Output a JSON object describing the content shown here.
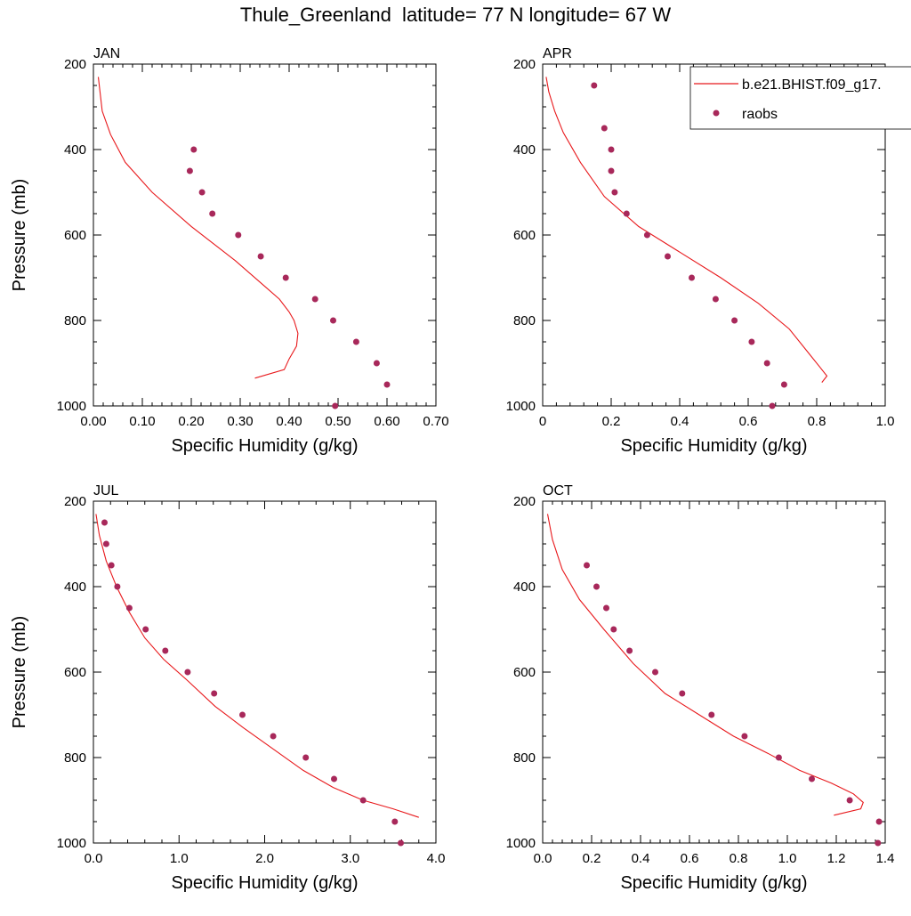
{
  "title": "Thule_Greenland  latitude= 77 N longitude= 67 W",
  "legend": {
    "model_label": "b.e21.BHIST.f09_g17.",
    "obs_label": "raobs",
    "model_color": "#e8191c",
    "obs_color": "#a8285a"
  },
  "chart_data": [
    {
      "type": "line",
      "panel": "JAN",
      "xlabel": "Specific Humidity (g/kg)",
      "ylabel": "Pressure (mb)",
      "xlim": [
        0,
        0.7
      ],
      "ylim": [
        1000,
        200
      ],
      "y_reversed": true,
      "xticks": [
        0,
        0.1,
        0.2,
        0.3,
        0.4,
        0.5,
        0.6,
        0.7
      ],
      "xtick_labels": [
        "0.00",
        "0.10",
        "0.20",
        "0.30",
        "0.40",
        "0.50",
        "0.60",
        "0.70"
      ],
      "yticks": [
        200,
        400,
        600,
        800,
        1000
      ],
      "ytick_labels": [
        "200",
        "400",
        "600",
        "800",
        "1000"
      ],
      "series": [
        {
          "name": "b.e21.BHIST.f09_g17.",
          "kind": "line",
          "x": [
            0.33,
            0.39,
            0.4,
            0.415,
            0.418,
            0.41,
            0.4,
            0.38,
            0.35,
            0.29,
            0.2,
            0.12,
            0.065,
            0.035,
            0.018,
            0.01
          ],
          "y": [
            935,
            915,
            890,
            860,
            830,
            800,
            780,
            750,
            720,
            660,
            580,
            500,
            430,
            365,
            310,
            230
          ]
        },
        {
          "name": "raobs",
          "kind": "scatter",
          "x": [
            0.205,
            0.197,
            0.222,
            0.243,
            0.296,
            0.342,
            0.393,
            0.453,
            0.49,
            0.537,
            0.579,
            0.6,
            0.494
          ],
          "y": [
            400,
            450,
            500,
            550,
            600,
            650,
            700,
            750,
            800,
            850,
            900,
            950,
            1000
          ]
        }
      ]
    },
    {
      "type": "line",
      "panel": "APR",
      "xlabel": "Specific Humidity (g/kg)",
      "ylabel": "",
      "xlim": [
        0,
        1.0
      ],
      "ylim": [
        1000,
        200
      ],
      "y_reversed": true,
      "xticks": [
        0,
        0.2,
        0.4,
        0.6,
        0.8,
        1.0
      ],
      "xtick_labels": [
        "0",
        "0.2",
        "0.4",
        "0.6",
        "0.8",
        "1.0"
      ],
      "yticks": [
        200,
        400,
        600,
        800,
        1000
      ],
      "ytick_labels": [
        "200",
        "400",
        "600",
        "800",
        "1000"
      ],
      "series": [
        {
          "name": "b.e21.BHIST.f09_g17.",
          "kind": "line",
          "x": [
            0.815,
            0.83,
            0.81,
            0.78,
            0.72,
            0.63,
            0.52,
            0.4,
            0.28,
            0.18,
            0.11,
            0.06,
            0.035,
            0.018,
            0.01
          ],
          "y": [
            945,
            930,
            910,
            880,
            820,
            760,
            700,
            640,
            580,
            510,
            430,
            360,
            310,
            265,
            230
          ]
        },
        {
          "name": "raobs",
          "kind": "scatter",
          "x": [
            0.15,
            0.18,
            0.2,
            0.2,
            0.21,
            0.245,
            0.305,
            0.365,
            0.435,
            0.505,
            0.56,
            0.61,
            0.655,
            0.705,
            0.67
          ],
          "y": [
            250,
            350,
            400,
            450,
            500,
            550,
            600,
            650,
            700,
            750,
            800,
            850,
            900,
            950,
            1000
          ]
        }
      ]
    },
    {
      "type": "line",
      "panel": "JUL",
      "xlabel": "Specific Humidity (g/kg)",
      "ylabel": "Pressure (mb)",
      "xlim": [
        0,
        4.0
      ],
      "ylim": [
        1000,
        200
      ],
      "y_reversed": true,
      "xticks": [
        0,
        1,
        2,
        3,
        4
      ],
      "xtick_labels": [
        "0.0",
        "1.0",
        "2.0",
        "3.0",
        "4.0"
      ],
      "yticks": [
        200,
        400,
        600,
        800,
        1000
      ],
      "ytick_labels": [
        "200",
        "400",
        "600",
        "800",
        "1000"
      ],
      "series": [
        {
          "name": "b.e21.BHIST.f09_g17.",
          "kind": "line",
          "x": [
            3.8,
            3.5,
            3.15,
            2.8,
            2.45,
            2.1,
            1.75,
            1.42,
            1.1,
            0.82,
            0.6,
            0.42,
            0.27,
            0.15,
            0.07,
            0.03
          ],
          "y": [
            940,
            920,
            900,
            870,
            830,
            780,
            730,
            680,
            620,
            570,
            520,
            460,
            400,
            340,
            280,
            230
          ]
        },
        {
          "name": "raobs",
          "kind": "scatter",
          "x": [
            0.13,
            0.15,
            0.21,
            0.28,
            0.42,
            0.61,
            0.84,
            1.1,
            1.41,
            1.74,
            2.1,
            2.48,
            2.81,
            3.15,
            3.52,
            3.59
          ],
          "y": [
            250,
            300,
            350,
            400,
            450,
            500,
            550,
            600,
            650,
            700,
            750,
            800,
            850,
            900,
            950,
            1000
          ]
        }
      ]
    },
    {
      "type": "line",
      "panel": "OCT",
      "xlabel": "Specific Humidity (g/kg)",
      "ylabel": "",
      "xlim": [
        0,
        1.4
      ],
      "ylim": [
        1000,
        200
      ],
      "y_reversed": true,
      "xticks": [
        0,
        0.2,
        0.4,
        0.6,
        0.8,
        1.0,
        1.2,
        1.4
      ],
      "xtick_labels": [
        "0.0",
        "0.2",
        "0.4",
        "0.6",
        "0.8",
        "1.0",
        "1.2",
        "1.4"
      ],
      "yticks": [
        200,
        400,
        600,
        800,
        1000
      ],
      "ytick_labels": [
        "200",
        "400",
        "600",
        "800",
        "1000"
      ],
      "series": [
        {
          "name": "b.e21.BHIST.f09_g17.",
          "kind": "line",
          "x": [
            1.19,
            1.3,
            1.31,
            1.27,
            1.18,
            1.05,
            0.92,
            0.78,
            0.64,
            0.5,
            0.37,
            0.25,
            0.15,
            0.08,
            0.04,
            0.02
          ],
          "y": [
            935,
            920,
            905,
            885,
            860,
            830,
            790,
            750,
            700,
            650,
            580,
            500,
            430,
            360,
            290,
            230
          ]
        },
        {
          "name": "raobs",
          "kind": "scatter",
          "x": [
            0.18,
            0.22,
            0.26,
            0.29,
            0.355,
            0.46,
            0.57,
            0.69,
            0.825,
            0.965,
            1.1,
            1.255,
            1.375,
            1.37
          ],
          "y": [
            350,
            400,
            450,
            500,
            550,
            600,
            650,
            700,
            750,
            800,
            850,
            900,
            950,
            1000
          ]
        }
      ]
    }
  ]
}
